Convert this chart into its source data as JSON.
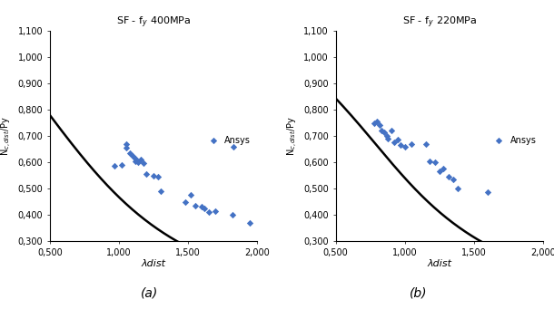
{
  "title_a": "SF - f$_y$ 400MPa",
  "title_b": "SF - f$_y$ 220MPa",
  "ylabel_a": "N$_{c,dist}$/Py",
  "ylabel_b": "N$_{c,dist}$/Py",
  "xlabel": "λdist",
  "label_a": "(a)",
  "label_b": "(b)",
  "legend_label": "Ansys",
  "xlim": [
    0.5,
    2.0
  ],
  "ylim": [
    0.3,
    1.1
  ],
  "yticks": [
    0.3,
    0.4,
    0.5,
    0.6,
    0.7,
    0.8,
    0.9,
    1.0,
    1.1
  ],
  "xticks": [
    0.5,
    1.0,
    1.5,
    2.0
  ],
  "scatter_color": "#4472c4",
  "curve_color": "#000000",
  "scatter_a_x": [
    0.97,
    1.02,
    1.05,
    1.05,
    1.08,
    1.1,
    1.12,
    1.12,
    1.14,
    1.16,
    1.18,
    1.2,
    1.25,
    1.28,
    1.3,
    1.48,
    1.52,
    1.55,
    1.6,
    1.62,
    1.65,
    1.7,
    1.82,
    1.95,
    1.83
  ],
  "scatter_a_y": [
    0.585,
    0.59,
    0.67,
    0.655,
    0.635,
    0.625,
    0.615,
    0.605,
    0.6,
    0.61,
    0.595,
    0.555,
    0.55,
    0.545,
    0.49,
    0.45,
    0.475,
    0.435,
    0.43,
    0.425,
    0.41,
    0.415,
    0.4,
    0.37,
    0.66
  ],
  "scatter_b_x": [
    0.78,
    0.8,
    0.82,
    0.83,
    0.85,
    0.87,
    0.88,
    0.9,
    0.92,
    0.95,
    0.97,
    1.0,
    1.05,
    1.15,
    1.18,
    1.22,
    1.25,
    1.28,
    1.32,
    1.35,
    1.38,
    1.6
  ],
  "scatter_b_y": [
    0.75,
    0.755,
    0.74,
    0.72,
    0.715,
    0.7,
    0.69,
    0.72,
    0.675,
    0.685,
    0.665,
    0.66,
    0.67,
    0.67,
    0.605,
    0.6,
    0.565,
    0.575,
    0.545,
    0.535,
    0.5,
    0.485
  ],
  "xtick_labels": [
    "0,500",
    "1,000",
    "1,500",
    "2,000"
  ],
  "ytick_labels": [
    "0,300",
    "0,400",
    "0,500",
    "0,600",
    "0,700",
    "0,800",
    "0,900",
    "1,000",
    "1,100"
  ]
}
